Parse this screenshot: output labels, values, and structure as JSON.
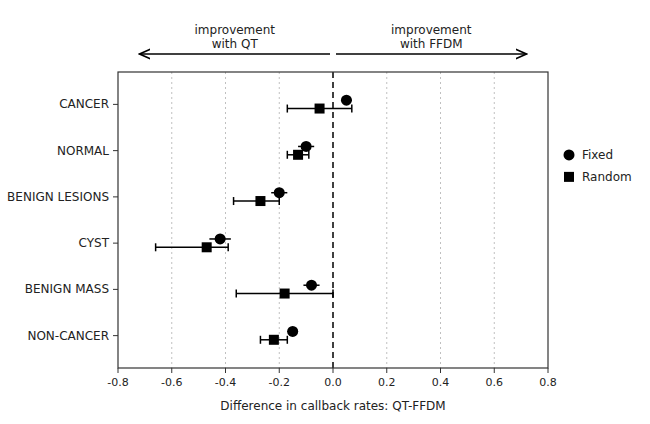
{
  "chart_data": {
    "type": "errorbar",
    "orientation": "horizontal",
    "categories": [
      "CANCER",
      "NORMAL",
      "BENIGN LESIONS",
      "CYST",
      "BENIGN MASS",
      "NON-CANCER"
    ],
    "series": [
      {
        "name": "Fixed",
        "color": "black",
        "marker": "circle",
        "values": [
          0.05,
          -0.1,
          -0.2,
          -0.42,
          -0.08,
          -0.15
        ],
        "error_low": [
          0.02,
          0.03,
          0.03,
          0.04,
          0.03,
          0.02
        ],
        "error_high": [
          0.02,
          0.03,
          0.03,
          0.04,
          0.03,
          0.02
        ]
      },
      {
        "name": "Random",
        "color": "black",
        "marker": "square",
        "values": [
          -0.05,
          -0.13,
          -0.27,
          -0.47,
          -0.18,
          -0.22
        ],
        "error_low": [
          0.12,
          0.04,
          0.1,
          0.19,
          0.18,
          0.05
        ],
        "error_high": [
          0.12,
          0.04,
          0.07,
          0.08,
          0.18,
          0.05
        ]
      }
    ],
    "xlim": [
      -0.8,
      0.8
    ],
    "xticks": [
      -0.8,
      -0.6,
      -0.4,
      -0.2,
      {
        "value": 0.0,
        "label": "0.0"
      },
      0.2,
      0.4,
      0.6,
      0.8
    ],
    "xlabel": "Difference in callback rates: QT-FFDM",
    "reference_line": 0.0,
    "grid": true,
    "legend": "right",
    "annotations": [
      {
        "text": "improvement\nwith QT"
      },
      {
        "text": "improvement\nwith FFDM"
      }
    ]
  }
}
